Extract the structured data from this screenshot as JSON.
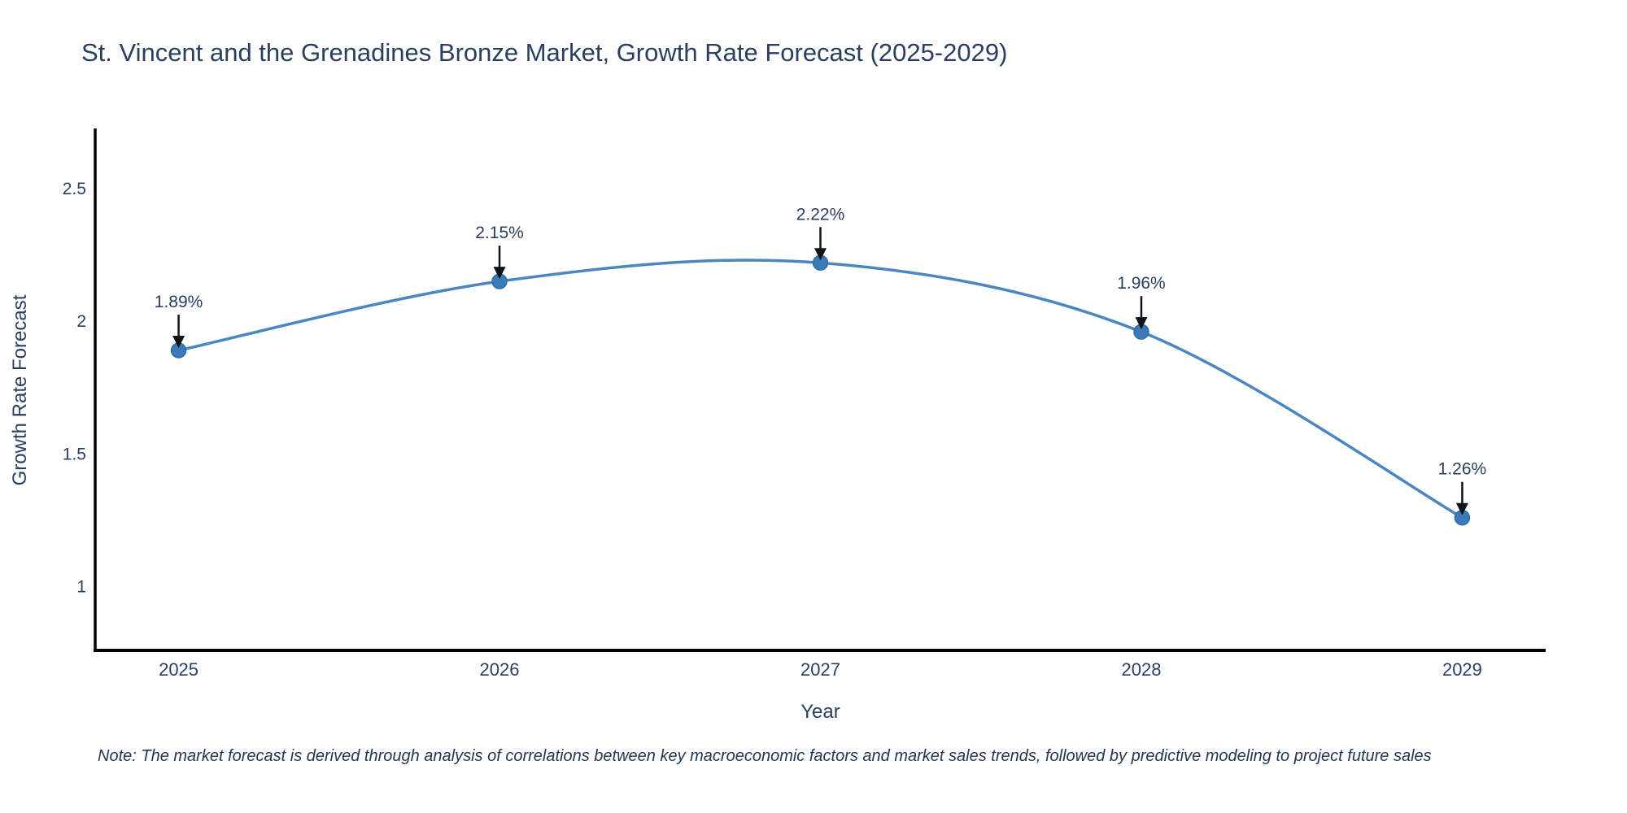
{
  "title": "St. Vincent and the Grenadines Bronze Market, Growth Rate Forecast (2025-2029)",
  "footnote": "Note: The market forecast is derived through analysis of correlations between key macroeconomic factors and market sales trends, followed by predictive modeling to project future sales",
  "colors": {
    "line": "#4a86bf",
    "marker_fill": "#3a7ab8",
    "marker_edge": "#316da8",
    "text": "#2a3f5f",
    "arrow": "#0f1419",
    "axis_line": "#000000",
    "background": "#ffffff"
  },
  "chart_data": {
    "type": "line",
    "title": "St. Vincent and the Grenadines Bronze Market, Growth Rate Forecast (2025-2029)",
    "xlabel": "Year",
    "ylabel": "Growth Rate Forecast",
    "x": [
      2025,
      2026,
      2027,
      2028,
      2029
    ],
    "values": [
      1.89,
      2.15,
      2.22,
      1.96,
      1.26
    ],
    "point_labels": [
      "1.89%",
      "2.15%",
      "2.22%",
      "1.96%",
      "1.26%"
    ],
    "xtick_labels": [
      "2025",
      "2026",
      "2027",
      "2028",
      "2029"
    ],
    "ytick_values": [
      1,
      1.5,
      2,
      2.5
    ],
    "ytick_labels": [
      "1",
      "1.5",
      "2",
      "2.5"
    ],
    "xlim": [
      2024.74,
      2029.26
    ],
    "ylim": [
      0.76,
      2.72
    ],
    "grid": false,
    "legend": "none",
    "line_shape": "spline",
    "annotation_style": "value-with-down-arrow"
  }
}
